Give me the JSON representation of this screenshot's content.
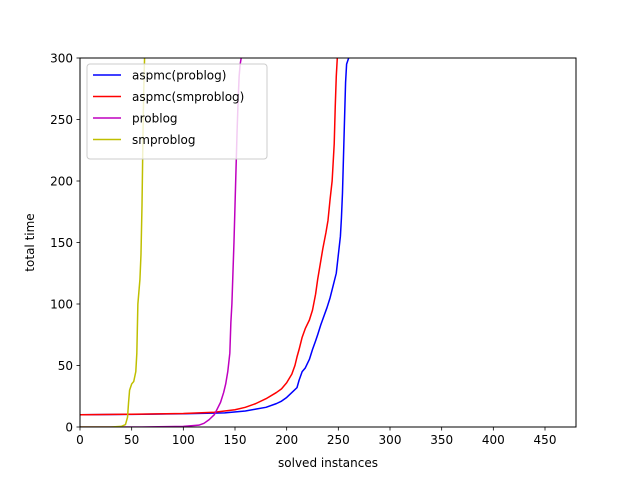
{
  "chart_data": {
    "type": "line",
    "title": "",
    "xlabel": "solved instances",
    "ylabel": "total time",
    "xlim": [
      0,
      480
    ],
    "ylim": [
      0,
      300
    ],
    "xticks": [
      0,
      50,
      100,
      150,
      200,
      250,
      300,
      350,
      400,
      450
    ],
    "yticks": [
      0,
      50,
      100,
      150,
      200,
      250,
      300
    ],
    "grid": false,
    "legend": "top-left",
    "series": [
      {
        "name": "aspmc(problog)",
        "color": "#0000ff",
        "x": [
          0,
          50,
          100,
          140,
          160,
          170,
          180,
          190,
          195,
          200,
          205,
          210,
          212,
          215,
          218,
          222,
          225,
          228,
          230,
          233,
          236,
          239,
          242,
          245,
          248,
          250,
          252,
          253,
          254,
          255,
          256,
          257,
          258,
          260
        ],
        "y": [
          10,
          10.3,
          10.8,
          11.5,
          13,
          14.5,
          16,
          19,
          21,
          24,
          28,
          32,
          38,
          45,
          48,
          55,
          63,
          70,
          75,
          83,
          90,
          97,
          105,
          115,
          125,
          140,
          155,
          170,
          190,
          220,
          250,
          280,
          295,
          300
        ]
      },
      {
        "name": "aspmc(smproblog)",
        "color": "#ff0000",
        "x": [
          0,
          50,
          100,
          130,
          150,
          160,
          170,
          180,
          190,
          195,
          200,
          205,
          208,
          210,
          212,
          215,
          218,
          222,
          225,
          228,
          230,
          232,
          235,
          238,
          240,
          242,
          244,
          246,
          247,
          248,
          249
        ],
        "y": [
          10,
          10.4,
          11,
          12,
          14,
          16,
          19,
          23,
          28,
          31,
          36,
          43,
          50,
          57,
          63,
          73,
          80,
          87,
          95,
          108,
          120,
          130,
          145,
          158,
          168,
          185,
          200,
          230,
          260,
          285,
          300
        ]
      },
      {
        "name": "problog",
        "color": "#bf00bf",
        "x": [
          0,
          60,
          100,
          115,
          120,
          125,
          130,
          133,
          136,
          139,
          141,
          143,
          145,
          146,
          147,
          148,
          149,
          150,
          151,
          152,
          153,
          154,
          155,
          156
        ],
        "y": [
          0,
          0,
          0.5,
          1.5,
          3,
          6,
          10,
          15,
          20,
          28,
          35,
          45,
          60,
          85,
          100,
          125,
          150,
          180,
          210,
          240,
          265,
          285,
          295,
          300
        ]
      },
      {
        "name": "smproblog",
        "color": "#bfbf00",
        "x": [
          0,
          30,
          40,
          44,
          46,
          47,
          48,
          50,
          52,
          54,
          55,
          56,
          57,
          58,
          59,
          60,
          60.5,
          61,
          61.5,
          62,
          62.5
        ],
        "y": [
          0,
          0,
          0.5,
          2,
          8,
          20,
          30,
          35,
          37,
          45,
          60,
          100,
          110,
          120,
          140,
          180,
          210,
          240,
          265,
          285,
          300
        ]
      }
    ]
  }
}
